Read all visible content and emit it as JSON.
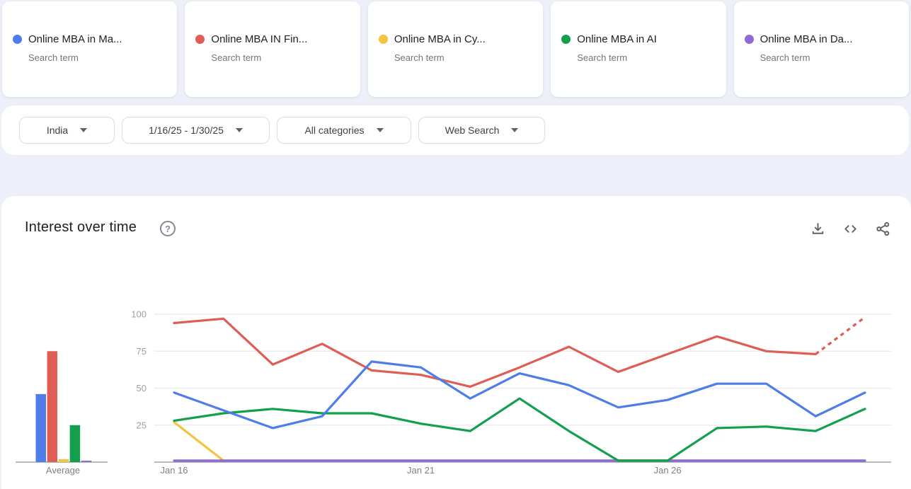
{
  "header_cards": {
    "items": [
      {
        "term": "Online MBA in Ma...",
        "type_label": "Search term",
        "color": "#4e7de9"
      },
      {
        "term": "Online MBA IN Fin...",
        "type_label": "Search term",
        "color": "#df5d54"
      },
      {
        "term": "Online MBA in Cy...",
        "type_label": "Search term",
        "color": "#f4c441"
      },
      {
        "term": "Online MBA in AI",
        "type_label": "Search term",
        "color": "#12a04e"
      },
      {
        "term": "Online MBA in Da...",
        "type_label": "Search term",
        "color": "#8f6bd6"
      }
    ]
  },
  "filter_bar": {
    "filters": [
      {
        "name": "region",
        "value": "India"
      },
      {
        "name": "date-range",
        "value": "1/16/25 - 1/30/25"
      },
      {
        "name": "category",
        "value": "All categories"
      },
      {
        "name": "search-type",
        "value": "Web Search"
      }
    ]
  },
  "interest_section": {
    "title": "Interest over time",
    "help_glyph": "?",
    "actions": [
      "download",
      "embed",
      "share"
    ]
  },
  "chart_data": {
    "type": "line",
    "title": "Interest over time",
    "x": [
      "Jan 16",
      "Jan 17",
      "Jan 18",
      "Jan 19",
      "Jan 20",
      "Jan 21",
      "Jan 22",
      "Jan 23",
      "Jan 24",
      "Jan 25",
      "Jan 26",
      "Jan 27",
      "Jan 28",
      "Jan 29",
      "Jan 30"
    ],
    "x_ticks": [
      {
        "index": 0,
        "label": "Jan 16"
      },
      {
        "index": 5,
        "label": "Jan 21"
      },
      {
        "index": 10,
        "label": "Jan 26"
      }
    ],
    "ylim": [
      0,
      100
    ],
    "yticks": [
      25,
      50,
      75,
      100
    ],
    "grid": true,
    "legend_position": "cards-top",
    "average_label": "Average",
    "series": [
      {
        "name": "Online MBA in Ma...",
        "color": "#4e7de9",
        "values": [
          47,
          35,
          23,
          31,
          68,
          64,
          43,
          60,
          52,
          37,
          42,
          53,
          53,
          31,
          47
        ],
        "average": 46
      },
      {
        "name": "Online MBA IN Fin...",
        "color": "#df5d54",
        "values": [
          94,
          97,
          66,
          80,
          62,
          59,
          51,
          64,
          78,
          61,
          73,
          85,
          75,
          73,
          98
        ],
        "average": 75,
        "dashed_from_index": 13
      },
      {
        "name": "Online MBA in Cy...",
        "color": "#f4c441",
        "values": [
          27,
          1,
          1,
          1,
          1,
          1,
          1,
          1,
          1,
          1,
          1,
          1,
          1,
          1,
          1
        ],
        "average": 2
      },
      {
        "name": "Online MBA in AI",
        "color": "#12a04e",
        "values": [
          28,
          33,
          36,
          33,
          33,
          26,
          21,
          43,
          21,
          1,
          1,
          23,
          24,
          21,
          36
        ],
        "average": 25
      },
      {
        "name": "Online MBA in Da...",
        "color": "#8f6bd6",
        "values": [
          1,
          1,
          1,
          1,
          1,
          1,
          1,
          1,
          1,
          1,
          1,
          1,
          1,
          1,
          1
        ],
        "average": 1
      }
    ]
  }
}
